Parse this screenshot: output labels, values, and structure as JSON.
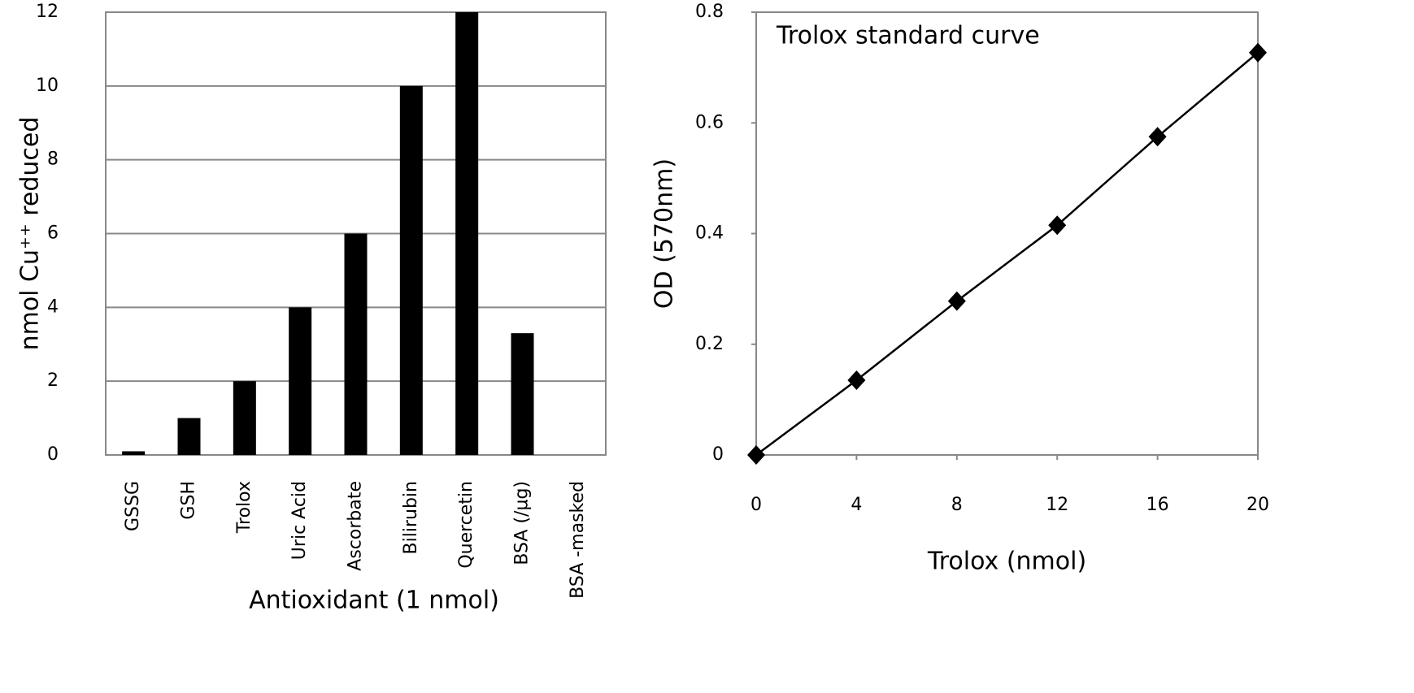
{
  "chart_data": [
    {
      "type": "bar",
      "xlabel": "Antioxidant (1 nmol)",
      "ylabel": "nmol Cu⁺⁺ reduced",
      "categories": [
        "GSSG",
        "GSH",
        "Trolox",
        "Uric Acid",
        "Ascorbate",
        "Bilirubin",
        "Quercetin",
        "BSA (/µg)",
        "BSA -masked"
      ],
      "values": [
        0.1,
        1,
        2,
        4,
        6,
        10,
        12,
        3.3,
        0
      ],
      "color": "#000000",
      "ylim": [
        0,
        12
      ],
      "yticks": [
        0,
        2,
        4,
        6,
        8,
        10,
        12
      ],
      "grid": true
    },
    {
      "type": "line",
      "annotation": "Trolox standard curve",
      "xlabel": "Trolox (nmol)",
      "ylabel": "OD (570nm)",
      "x": [
        0,
        4,
        8,
        12,
        16,
        20
      ],
      "values": [
        0,
        0.135,
        0.278,
        0.415,
        0.575,
        0.727
      ],
      "color": "#000000",
      "xlim": [
        0,
        20
      ],
      "xticks": [
        0,
        4,
        8,
        12,
        16,
        20
      ],
      "ylim": [
        0,
        0.8
      ],
      "yticks": [
        0,
        0.2,
        0.4,
        0.6,
        0.8
      ],
      "grid": false
    }
  ]
}
